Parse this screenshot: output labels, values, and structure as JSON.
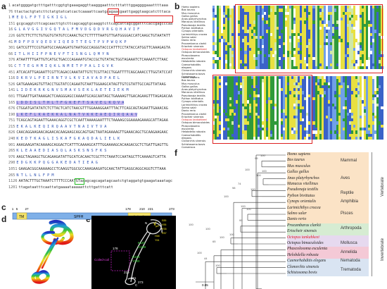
{
  "panels": {
    "a": "a",
    "b": "b",
    "c": "c",
    "d": "d",
    "e": "e",
    "f": "f"
  },
  "seq_a": {
    "rows": [
      {
        "n": "1",
        "t": "acatggggatgctttgatttcggtgtgaaagaggttaagggaatttctttatttggaggggaaattttaaa",
        "type": "nt"
      },
      {
        "n": "76",
        "t": "ttactactgtatcttctatgtatcatcactcaaaattcaatgaagaacgaattgaggtaagcatctttaca",
        "type": "nt"
      },
      {
        "n": "1",
        "t": "MEQLFPTIGKIGL",
        "type": "aa"
      },
      {
        "n": "151",
        "t": "gcgcaggtcttcagcaacttgtcttcagcaggtgcaaggtcttcagcattagcggatttcaccgagcccaa",
        "type": "nt"
      },
      {
        "n": "16",
        "t": "GLAVGGIVGQTALFMVDGQDVRGQHAVIF",
        "type": "aa"
      },
      {
        "n": "226",
        "t": "GGTCTTCTTCTGTGGTGTATGTCCAAACTGCTCTTTTTAATGTTGATGGGGACCATCAAGCTGTAATATT",
        "type": "nt"
      },
      {
        "n": "41",
        "t": "MDFPDVQEDVIQEDTTEGTPVPWQKP",
        "type": "aa"
      },
      {
        "n": "301",
        "t": "GATCGTTTCCGTGATGCCAAGAGATGTAATGGCCAGGGTACCCATTTCCTATACCATGGTTCAAAGAGTA",
        "type": "nt"
      },
      {
        "n": "66",
        "t": "ITLHIIFPNEVFTISNGLQMYN",
        "type": "aa"
      },
      {
        "n": "376",
        "t": "ATAATTTTGATTGTCATGCTGACCCAGAAATGTACCGCTGTATACTGGTAGAAATCTCAAAATCTTAAC",
        "type": "nt"
      },
      {
        "n": "91",
        "t": "CTTEGHMIQKLNMETPPALIGVK",
        "type": "aa"
      },
      {
        "n": "451",
        "t": "ATCACATTGAGAATTCGTTCAGACCAAATATTGTCTCGTTACCTGGATTTTCAGCAAACCTTGGTATCCAT",
        "type": "nt"
      },
      {
        "n": "116",
        "t": "DKRVLPEIRNTVLKVIAVADPAEL",
        "type": "aa"
      },
      {
        "n": "526",
        "t": "GATGAAAGAGTGTTACCTGGTATCCAGAATGTAATTGGAAGCATAGTTGTCGTATTGCCAGTTATAAG",
        "type": "nt"
      },
      {
        "n": "141",
        "t": "LIDEKRKGNVSMAVSEKLAETEIEKM",
        "type": "aa"
      },
      {
        "n": "601",
        "t": "TTGAATTGATAAAGACTCAAGGGAGCCAAAATGCAGCAATAGCTGAAAAGTTGACAGAAGTTTAGAGACAA",
        "type": "nt"
      },
      {
        "n": "165",
        "t": "LDDISLTHLTFGKEFTSAVELKQVA",
        "type": "aa",
        "hl_from": 12
      },
      {
        "n": "676",
        "t": "CTGGATGATATATCTCTTACTCATCTAACGTTTGGAAAGGAATTTACTTCAGCAGTAGAATTGAAACAG",
        "type": "nt"
      },
      {
        "n": "190",
        "t": "LKEFLKAEKKALNATVKKEAEQIRQAAV",
        "type": "aa",
        "hl_to": 10
      },
      {
        "n": "751",
        "t": "TCAGCAGTAGAATTGAAACAGGTCGCTCAATTAAAAGAATTTCTAAAAGCGGAAAAGAAAGCATTAGAA",
        "type": "nt"
      },
      {
        "n": "215",
        "t": "EKALKEQIRQAAVTNAIVTVA",
        "type": "aa"
      },
      {
        "n": "826",
        "t": "CAACAGGAAGAACAGAACACAAGAAGCAGCAGTGACTAATAGAAAAGTTGAAACAGCTGCAAGAAGAAC",
        "type": "nt"
      },
      {
        "n": "240",
        "t": "KEDTKAGLISKAFGKAQDALIELK",
        "type": "aa"
      },
      {
        "n": "901",
        "t": "AAAGAAGATACAAAAGCAGGACTCATTTCAAAAGCATTTGGAAAAGCACAAGACGCTCTGATTGAGTTG",
        "type": "nt"
      },
      {
        "n": "265",
        "t": "KLEAAEDIASQLASKSNSFKS",
        "type": "aa"
      },
      {
        "n": "976",
        "t": "AAGCTAGAAGCTGCAGAAGATATTGCATCACAACTCGCTTCTAAATCCAATAGCTTCAAAAGTCATTA",
        "type": "nt"
      },
      {
        "n": "290",
        "t": "EDGKKPQGGAKEDATIEAG",
        "type": "aa"
      },
      {
        "n": "1051",
        "t": "GAAGACGGCAAAAAGCCTCAAGGTGGCGCCAAAGAAGATGCAACTATTGAGGCAGGCAGGTCTTAAA",
        "type": "nt"
      },
      {
        "n": "265",
        "t": "NTLLNLFPM",
        "type": "aa"
      },
      {
        "n": "1126",
        "t": "AATACTTTGCTAAATCTTTTCCCAATGTaaagcagcagatagcaatctgtaggatgtgaagataaatagc",
        "type": "nt"
      },
      {
        "n": "1201",
        "t": "ttagataatttcaattatgaaaataaaaattcttgatttcatt",
        "type": "nt"
      }
    ]
  },
  "alignment": {
    "species_block1": [
      "Homo sapiens",
      "Bos taurus",
      "Mus musculus",
      "Gallus gallus",
      "Anas platyrhynchos",
      "Manacus vitellinus",
      "Pseudonaja textilis",
      "Python bivittatus",
      "Cynops orientalis",
      "Larimichthys crocea",
      "Salmo salar",
      "Danio rerio",
      "Procambarus clarkii",
      "Eriocheir sinensis",
      "Octopus tankahkeei",
      "Octopus bimaculoides",
      "Phascolosoma esculenta",
      "Helobdella robusta",
      "Caenorhabditis elegans",
      "Clonorchis sinensis",
      "Schistosoma bovis",
      "Consensus"
    ],
    "highlight_species": "Octopus tankahkeei"
  },
  "domain_c": {
    "ticks": [
      "1",
      "5",
      "27",
      "",
      "178",
      "210",
      "221",
      "273"
    ],
    "tm_label": "TM",
    "spfh_label": "SPFH",
    "cc_label": "Coiled-coil"
  },
  "panel_e": {
    "labels": [
      "N",
      "K187",
      "G189",
      "N195",
      "Y200",
      "210",
      "221",
      "178",
      "C",
      "Coiled-coil",
      "273"
    ],
    "top_labels": [
      "E85",
      "V95",
      "R35",
      "R57",
      "H58",
      "Y94"
    ]
  },
  "tree": {
    "species": [
      {
        "name": "Homo sapiens",
        "red": false
      },
      {
        "name": "Bos taurus",
        "red": false
      },
      {
        "name": "Mus musculus",
        "red": false
      },
      {
        "name": "Gallus gallus",
        "red": false
      },
      {
        "name": "Anas platyrhynchos",
        "red": false
      },
      {
        "name": "Manacus vitellinus",
        "red": false
      },
      {
        "name": "Pseudonaja textilis",
        "red": false
      },
      {
        "name": "Python bivittatus",
        "red": false
      },
      {
        "name": "Cynops orientalis",
        "red": false
      },
      {
        "name": "Larimichthys crocea",
        "red": false
      },
      {
        "name": "Salmo salar",
        "red": false
      },
      {
        "name": "Danio rerio",
        "red": false
      },
      {
        "name": "Procambarus clarkii",
        "red": false
      },
      {
        "name": "Eriocheir sinensis",
        "red": false
      },
      {
        "name": "Octopus tankahkeei",
        "red": true
      },
      {
        "name": "Octopus bimaculoides",
        "red": false
      },
      {
        "name": "Phascolosoma esculenta",
        "red": false
      },
      {
        "name": "Helobdella robusta",
        "red": false
      },
      {
        "name": "Caenorhabditis elegans",
        "red": false
      },
      {
        "name": "Clonorchis sinensis",
        "red": false
      },
      {
        "name": "Schistosoma bovis",
        "red": false
      }
    ],
    "groups": [
      {
        "name": "Mammal",
        "color": "#fbe3c6"
      },
      {
        "name": "Aves",
        "color": "#fbe3c6"
      },
      {
        "name": "Reptile",
        "color": "#fbe3c6"
      },
      {
        "name": "Amphibia",
        "color": "#fbe3c6"
      },
      {
        "name": "Pisces",
        "color": "#fbe3c6"
      },
      {
        "name": "Arthropoda",
        "color": "#d6ecd2"
      },
      {
        "name": "Mollusca",
        "color": "#e6d9ef"
      },
      {
        "name": "Annelida",
        "color": "#f4c9d6"
      },
      {
        "name": "Nematoda",
        "color": "#d9e4f2"
      },
      {
        "name": "Trematoda",
        "color": "#d9e4f2"
      }
    ],
    "super_groups": [
      "Vertebrate",
      "Invertebrate"
    ],
    "bootstrap": [
      "100",
      "99",
      "100",
      "100",
      "100",
      "100",
      "74",
      "98",
      "100",
      "100",
      "100",
      "99",
      "100",
      "100",
      "65",
      "100",
      "100",
      "44",
      "100",
      "100",
      "100",
      "100"
    ],
    "scale_label": "0.05"
  }
}
